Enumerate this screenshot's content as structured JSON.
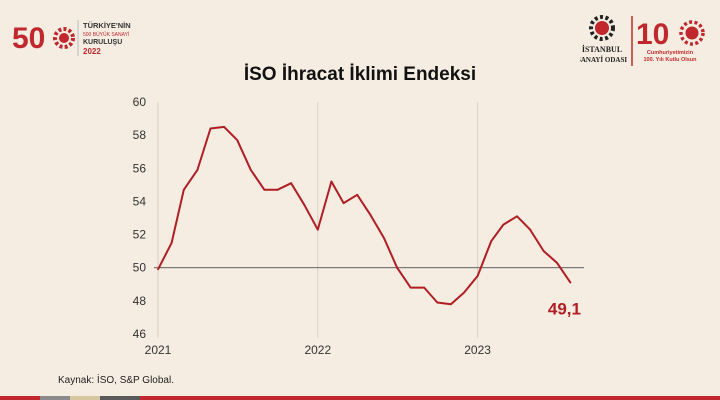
{
  "branding": {
    "left_logo": {
      "number": "50",
      "line1": "TÜRKİYE'NİN",
      "line2": "500 BÜYÜK SANAYİ",
      "line3": "KURULUŞU",
      "year": "2022"
    },
    "right_logo": {
      "org_line1": "İSTANBUL",
      "org_line2": "SANAYİ ODASI",
      "centennial_number": "10",
      "centennial_line1": "Cumhuriyetimizin",
      "centennial_line2": "100. Yılı Kutlu Olsun"
    },
    "colors": {
      "brand_red": "#c0282d",
      "line_red": "#b01e23",
      "background": "#f5ede2"
    }
  },
  "source_note": "Kaynak: İSO, S&P Global.",
  "chart_data": {
    "type": "line",
    "title": "İSO İhracat İklimi Endeksi",
    "xlabel": "",
    "ylabel": "",
    "x_tick_labels": [
      "2021",
      "2022",
      "2023"
    ],
    "y_ticks": [
      46,
      48,
      50,
      52,
      54,
      56,
      58,
      60
    ],
    "ylim": [
      46,
      60
    ],
    "reference_line": 50,
    "grid": "vertical lines at year starts",
    "series": [
      {
        "x": [
          "2021-01",
          "2021-02",
          "2021-03",
          "2021-04",
          "2021-05",
          "2021-06",
          "2021-07",
          "2021-08",
          "2021-09",
          "2021-10",
          "2021-11",
          "2021-12",
          "2022-01",
          "2022-02",
          "2022-03",
          "2022-04",
          "2022-05",
          "2022-06",
          "2022-07",
          "2022-08",
          "2022-09",
          "2022-10",
          "2022-11",
          "2022-12",
          "2023-01",
          "2023-02",
          "2023-03",
          "2023-04",
          "2023-05",
          "2023-06",
          "2023-07",
          "2023-08"
        ],
        "values": [
          49.9,
          51.5,
          54.7,
          55.9,
          58.4,
          58.5,
          57.7,
          55.9,
          54.7,
          54.7,
          55.1,
          53.8,
          52.3,
          55.2,
          53.9,
          54.4,
          53.2,
          51.8,
          50.0,
          48.8,
          48.8,
          47.9,
          47.8,
          48.5,
          49.5,
          51.6,
          52.6,
          53.1,
          52.3,
          51.0,
          50.3,
          49.1
        ],
        "color": "#b01e23"
      }
    ],
    "last_value_label": "49,1"
  },
  "bottom_strip_colors": [
    "#c0282d",
    "#8b8b8b",
    "#d6c7a1",
    "#5a5a5a",
    "#c0282d"
  ]
}
